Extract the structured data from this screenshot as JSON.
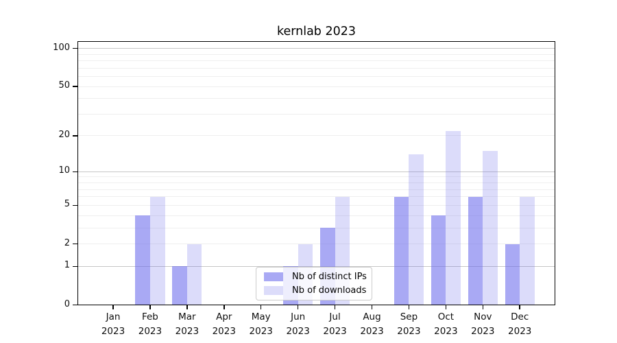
{
  "chart_data": {
    "type": "bar",
    "title": "kernlab 2023",
    "months": [
      "Jan",
      "Feb",
      "Mar",
      "Apr",
      "May",
      "Jun",
      "Jul",
      "Aug",
      "Sep",
      "Oct",
      "Nov",
      "Dec"
    ],
    "year": "2023",
    "series": [
      {
        "name": "Nb of distinct IPs",
        "color": "rgba(102,102,235,0.56)",
        "values": [
          0,
          4,
          1,
          0,
          0,
          1,
          3,
          0,
          6,
          4,
          6,
          2
        ]
      },
      {
        "name": "Nb of downloads",
        "color": "rgba(102,102,235,0.23)",
        "values": [
          0,
          6,
          2,
          0,
          0,
          2,
          6,
          0,
          14,
          22,
          15,
          6
        ]
      }
    ],
    "yscale": "log1p",
    "yticks": [
      0,
      1,
      2,
      5,
      10,
      20,
      50,
      100
    ],
    "major_gridlines": [
      1,
      10,
      100
    ],
    "minor_gridlines": [
      2,
      3,
      4,
      5,
      6,
      7,
      8,
      9,
      20,
      30,
      40,
      50,
      60,
      70,
      80,
      90
    ],
    "axis_color": "#000000",
    "major_grid_color": "#c6c6c6",
    "minor_grid_color": "#efefef",
    "legend_position": "lower center",
    "grid": "on"
  }
}
